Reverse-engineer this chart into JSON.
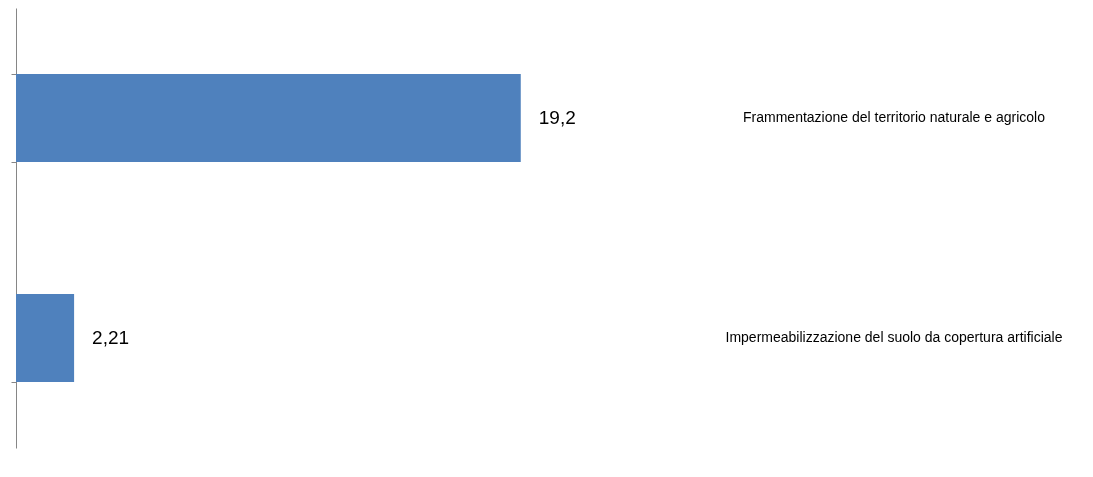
{
  "chart_data": {
    "type": "bar",
    "orientation": "horizontal",
    "categories": [
      "Frammentazione del territorio naturale e agricolo",
      "Impermeabilizzazione del suolo da copertura artificiale"
    ],
    "values": [
      19.2,
      2.21
    ],
    "value_labels": [
      "19,2",
      "2,21"
    ],
    "color": "#4f81bd",
    "grid": false
  }
}
